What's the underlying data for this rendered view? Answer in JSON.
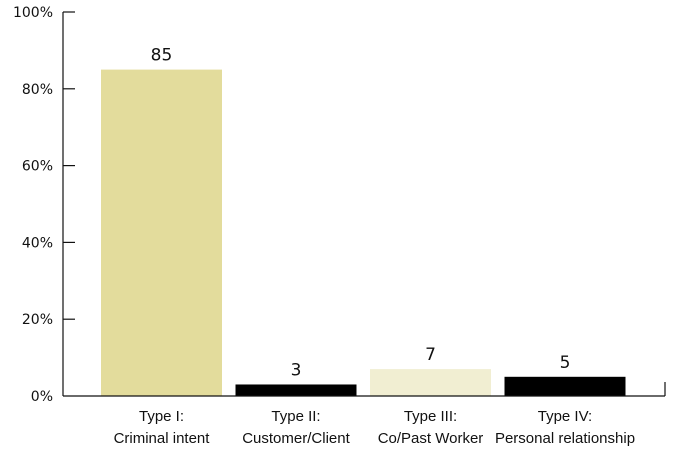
{
  "chart_data": {
    "type": "bar",
    "title": "",
    "xlabel": "",
    "ylabel": "",
    "ylim": [
      0,
      100
    ],
    "grid": false,
    "y_ticks": [
      {
        "value": 0,
        "label": "0%"
      },
      {
        "value": 20,
        "label": "20%"
      },
      {
        "value": 40,
        "label": "40%"
      },
      {
        "value": 60,
        "label": "60%"
      },
      {
        "value": 80,
        "label": "80%"
      },
      {
        "value": 100,
        "label": "100%"
      }
    ],
    "categories": [
      {
        "line1": "Type I:",
        "line2": "Criminal intent"
      },
      {
        "line1": "Type II:",
        "line2": "Customer/Client"
      },
      {
        "line1": "Type III:",
        "line2": "Co/Past Worker"
      },
      {
        "line1": "Type IV:",
        "line2": "Personal relationship"
      }
    ],
    "values": [
      85,
      3,
      7,
      5
    ],
    "data_labels": [
      "85",
      "3",
      "7",
      "5"
    ],
    "bar_colors": [
      "#e3dc9c",
      "#000000",
      "#f1eed2",
      "#000000"
    ]
  }
}
